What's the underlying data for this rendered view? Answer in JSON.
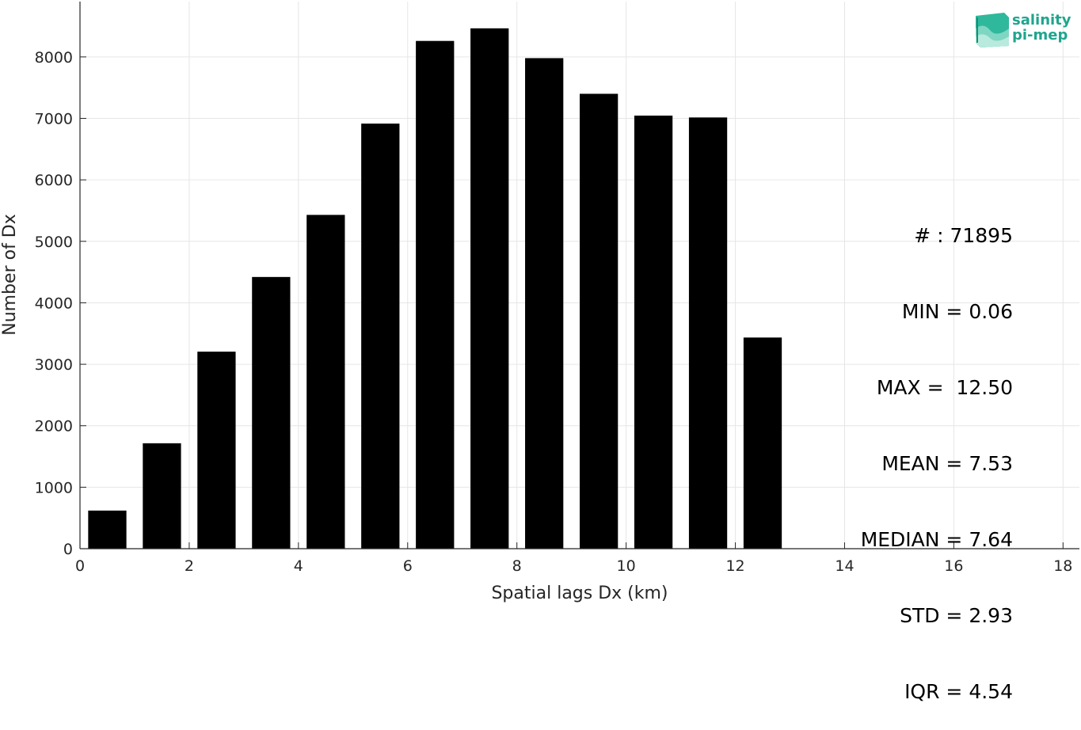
{
  "chart_data": {
    "type": "bar",
    "x": [
      0.5,
      1.5,
      2.5,
      3.5,
      4.5,
      5.5,
      6.5,
      7.5,
      8.5,
      9.5,
      10.5,
      11.5,
      12.5
    ],
    "values": [
      620,
      1715,
      3205,
      4420,
      5430,
      6915,
      8260,
      8465,
      7980,
      7400,
      7045,
      7015,
      3435
    ],
    "bar_width": 0.7,
    "title": "",
    "xlabel": "Spatial lags Dx (km)",
    "ylabel": "Number of Dx",
    "xlim": [
      0,
      18.3
    ],
    "ylim": [
      0,
      8900
    ],
    "xticks": [
      0,
      2,
      4,
      6,
      8,
      10,
      12,
      14,
      16,
      18
    ],
    "yticks": [
      0,
      1000,
      2000,
      3000,
      4000,
      5000,
      6000,
      7000,
      8000
    ],
    "bar_color": "#000000",
    "grid": true
  },
  "stats": {
    "count": "# : 71895",
    "min": "MIN = 0.06",
    "max": "MAX =  12.50",
    "mean": "MEAN = 7.53",
    "median": "MEDIAN = 7.64",
    "std": "STD = 2.93",
    "iqr": "IQR = 4.54"
  },
  "logo": {
    "line1": "salinity",
    "line2": "pi-mep",
    "color": "#1fa58e"
  }
}
